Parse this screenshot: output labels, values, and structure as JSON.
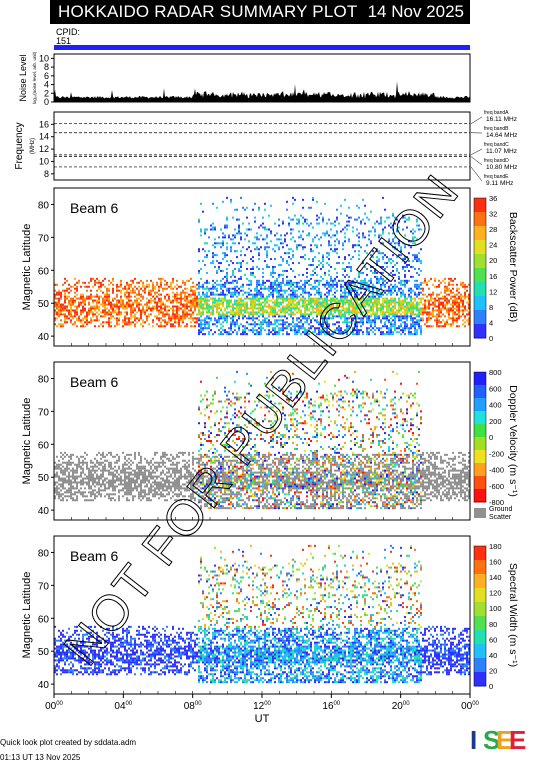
{
  "header": {
    "title": "HOKKAIDO RADAR SUMMARY PLOT",
    "date": "14 Nov 2025"
  },
  "cpid": {
    "label": "CPID:",
    "value": "151"
  },
  "noise_panel": {
    "ylabel": "Noise Level",
    "ysublabel": "log₁₀(noise level, arb. unit)",
    "yticks": [
      "0",
      "2",
      "4",
      "6",
      "8",
      "10"
    ]
  },
  "freq_panel": {
    "ylabel": "Frequency",
    "ysublabel": "(MHz)",
    "yticks": [
      "8",
      "10",
      "12",
      "14",
      "16"
    ],
    "bands": [
      {
        "name": "freq bandA",
        "value": "16.11 MHz"
      },
      {
        "name": "freq bandB",
        "value": "14.64 MHz"
      },
      {
        "name": "freq bandC",
        "value": "11.07 MHz"
      },
      {
        "name": "freq bandD",
        "value": "10.80 MHz"
      },
      {
        "name": "freq bandE",
        "value": "9.11 MHz"
      }
    ]
  },
  "watermark": "NOT FOR PUBLICATION",
  "footer": {
    "credit": "Quick look plot created by sddata.adm",
    "time": "01:13 UT 13 Nov 2025"
  },
  "logo": {
    "text": "ISEE",
    "colors": [
      "#1a3a8a",
      "#2aa74a",
      "#f0a020",
      "#e0203a"
    ]
  },
  "chart_data": [
    {
      "type": "heatmap",
      "ylabel": "Magnetic Latitude",
      "beam": "Beam  6",
      "yticks": [
        "40",
        "50",
        "60",
        "70",
        "80"
      ],
      "ylim": [
        37,
        85
      ],
      "colorbar": {
        "label": "Backscatter Power (dB)",
        "ticks": [
          "0",
          "4",
          "8",
          "12",
          "16",
          "20",
          "24",
          "28",
          "32",
          "36"
        ],
        "colors": [
          "#3030ff",
          "#2f80ff",
          "#20c0ff",
          "#20e0b0",
          "#50e050",
          "#a0e030",
          "#e0e020",
          "#ffb020",
          "#ff7010",
          "#ff3010"
        ]
      }
    },
    {
      "type": "heatmap",
      "ylabel": "Magnetic Latitude",
      "beam": "Beam  6",
      "yticks": [
        "40",
        "50",
        "60",
        "70",
        "80"
      ],
      "ylim": [
        37,
        85
      ],
      "colorbar": {
        "label": "Doppler Velocity (m s⁻¹)",
        "ticks": [
          "800",
          "600",
          "400",
          "200",
          "0",
          "-200",
          "-400",
          "-600",
          "-800"
        ],
        "colors": [
          "#2020ff",
          "#2060ff",
          "#20a0ff",
          "#20e0e0",
          "#40e040",
          "#a0e020",
          "#f0e020",
          "#ffa020",
          "#ff5010",
          "#ff1010"
        ],
        "extra_label": "Ground Scatter",
        "extra_color": "#909090"
      }
    },
    {
      "type": "heatmap",
      "ylabel": "Magnetic Latitude",
      "beam": "Beam  6",
      "yticks": [
        "40",
        "50",
        "60",
        "70",
        "80"
      ],
      "ylim": [
        37,
        85
      ],
      "colorbar": {
        "label": "Spectral Width (m s⁻¹)",
        "ticks": [
          "0",
          "20",
          "40",
          "60",
          "80",
          "100",
          "120",
          "140",
          "160",
          "180"
        ],
        "colors": [
          "#3030ff",
          "#2f80ff",
          "#20c0ff",
          "#20e0b0",
          "#50e050",
          "#a0e030",
          "#e0e020",
          "#ffb020",
          "#ff7010",
          "#ff3010"
        ]
      }
    }
  ],
  "xaxis": {
    "label": "UT",
    "ticks": [
      "00",
      "04",
      "08",
      "12",
      "16",
      "20",
      "00"
    ],
    "tick_superscript": "00"
  }
}
